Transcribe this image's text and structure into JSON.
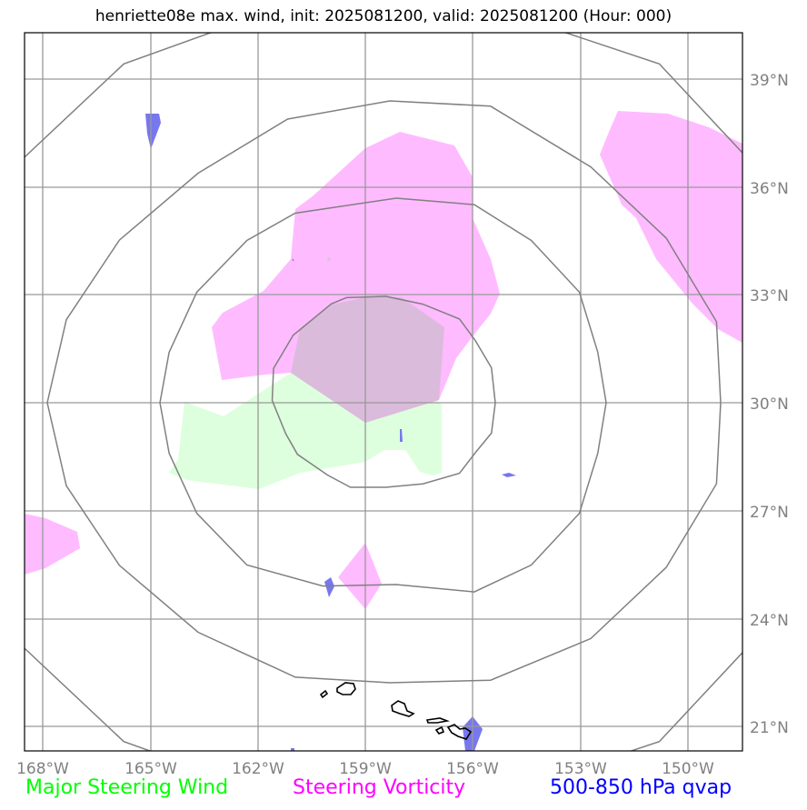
{
  "title": "henriette08e max. wind, init: 2025081200, valid: 2025081200 (Hour: 000)",
  "map": {
    "lat_ticks": [
      "39°N",
      "36°N",
      "33°N",
      "30°N",
      "27°N",
      "24°N",
      "21°N"
    ],
    "lon_ticks": [
      "168°W",
      "165°W",
      "162°W",
      "159°W",
      "156°W",
      "153°W",
      "150°W"
    ],
    "lat_range": [
      "20.3°N",
      "40.2°N"
    ],
    "lon_range": [
      "168.3°W",
      "148.4°W"
    ],
    "gridlines": true,
    "range_rings": 4,
    "land_outline": "Hawaiian Islands"
  },
  "legend": {
    "wind": {
      "label": "Major Steering Wind",
      "color": "#00ff00"
    },
    "vorticity": {
      "label": "Steering Vorticity",
      "color": "#ff00ff"
    },
    "qvap": {
      "label": "500-850 hPa qvap",
      "color": "#0000ff"
    }
  },
  "colors": {
    "wind_fill": "#ddffdd",
    "vorticity_fill": "#ffbbff",
    "overlap_fill": "#dbbbdb",
    "qvap_fill": "#7777ee",
    "grid": "#999999",
    "rings": "#808080"
  }
}
